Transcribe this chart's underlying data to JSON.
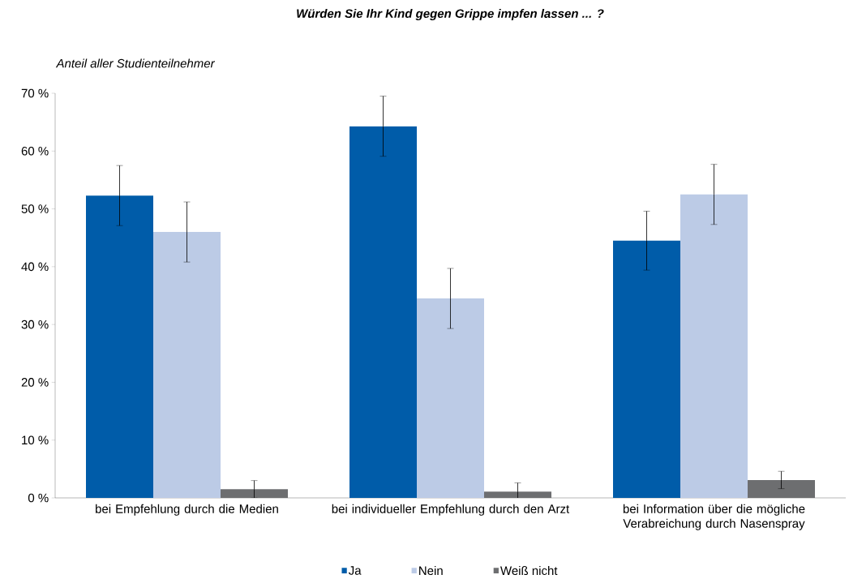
{
  "chart_data": {
    "type": "bar",
    "title": "Würden Sie Ihr Kind gegen Grippe impfen lassen ... ?",
    "ylabel": "Anteil aller Studienteilnehmer",
    "categories": [
      "bei Empfehlung durch die Medien",
      "bei individueller Empfehlung durch den Arzt",
      "bei Information über die mögliche Verabreichung durch Nasenspray"
    ],
    "series": [
      {
        "name": "Ja",
        "color": "#005ca9",
        "values": [
          52.3,
          64.3,
          44.5
        ],
        "errors": [
          5.2,
          5.2,
          5.1
        ]
      },
      {
        "name": "Nein",
        "color": "#bccbe6",
        "values": [
          46.0,
          34.5,
          52.5
        ],
        "errors": [
          5.2,
          5.2,
          5.2
        ]
      },
      {
        "name": "Weiß nicht",
        "color": "#6d6e70",
        "values": [
          1.5,
          1.1,
          3.1
        ],
        "errors": [
          1.5,
          1.5,
          1.5
        ]
      }
    ],
    "ylim": [
      0,
      70
    ],
    "yticks": [
      {
        "value": 0,
        "label": "0 %"
      },
      {
        "value": 10,
        "label": "10 %"
      },
      {
        "value": 20,
        "label": "20 %"
      },
      {
        "value": 30,
        "label": "30 %"
      },
      {
        "value": 40,
        "label": "40 %"
      },
      {
        "value": 50,
        "label": "50 %"
      },
      {
        "value": 60,
        "label": "60 %"
      },
      {
        "value": 70,
        "label": "70 %"
      }
    ],
    "grid": false,
    "legend": "bottom"
  }
}
